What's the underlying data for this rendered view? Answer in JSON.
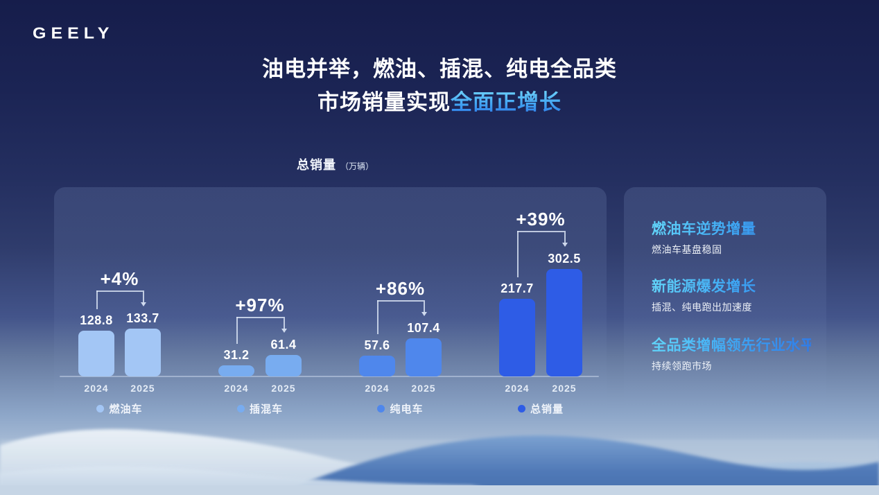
{
  "brand": {
    "logo": "GEELY"
  },
  "title": {
    "line1": "油电并举，燃油、插混、纯电全品类",
    "line2_plain": "市场销量实现",
    "line2_highlight": "全面正增长"
  },
  "chart_header": {
    "label": "总销量",
    "unit_note": "（万辆）"
  },
  "chart_data": {
    "type": "bar",
    "title": "总销量（万辆）",
    "unit": "万辆",
    "categories": [
      "2024",
      "2025"
    ],
    "series": [
      {
        "name": "燃油车",
        "values": [
          128.8,
          133.7
        ],
        "growth": "+4%",
        "color": "#a3c6f5"
      },
      {
        "name": "插混车",
        "values": [
          31.2,
          61.4
        ],
        "growth": "+97%",
        "color": "#78acf0"
      },
      {
        "name": "纯电车",
        "values": [
          57.6,
          107.4
        ],
        "growth": "+86%",
        "color": "#4f87ec"
      },
      {
        "name": "总销量",
        "values": [
          217.7,
          302.5
        ],
        "growth": "+39%",
        "color": "#2e5ce6"
      }
    ],
    "ylim": [
      0,
      310
    ],
    "grid": false,
    "legend_position": "bottom-per-group",
    "value_labels": "above-bars",
    "annotation_style": "growth-bracket-arrow"
  },
  "insights": {
    "items": [
      {
        "heading": "燃油车逆势增量",
        "detail": "燃油车基盘稳固"
      },
      {
        "heading": "新能源爆发增长",
        "detail": "插混、纯电跑出加速度"
      },
      {
        "heading": "全品类增幅领先行业水平",
        "detail": "持续领跑市场"
      }
    ]
  },
  "colors": {
    "background_top": "#161d4b",
    "background_bottom": "#c9d7e6",
    "title_highlight_top": "#6fd2fa",
    "title_highlight_bottom": "#2e7be9",
    "axis_line": "rgba(215,227,244,0.45)",
    "text_primary": "#ffffff"
  }
}
